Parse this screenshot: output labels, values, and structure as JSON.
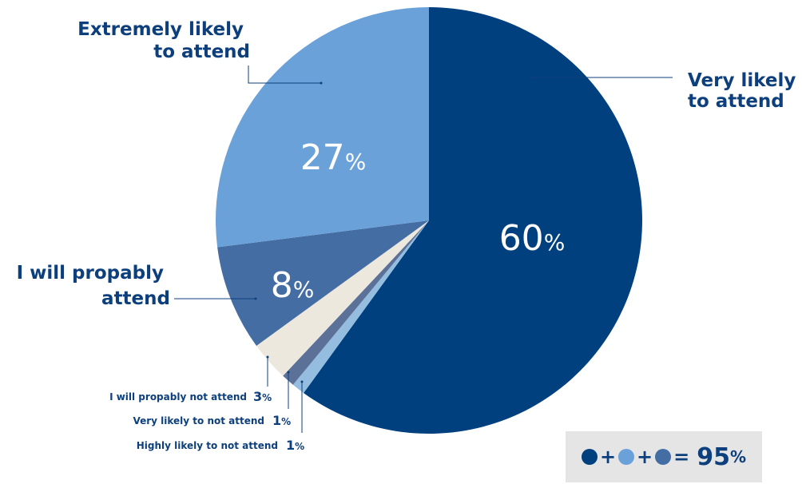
{
  "chart_data": {
    "type": "pie",
    "slices": [
      {
        "label": "Very likely to attend",
        "value": 60,
        "color": "#00407f"
      },
      {
        "label": "Highly likely to not attend",
        "value": 1,
        "color": "#94bde0"
      },
      {
        "label": "Very likely to not attend",
        "value": 1,
        "color": "#5c7197"
      },
      {
        "label": "I will propably not attend",
        "value": 3,
        "color": "#ece8de"
      },
      {
        "label": "I will propably attend",
        "value": 8,
        "color": "#446ea3"
      },
      {
        "label": "Extremely likely to attend",
        "value": 27,
        "color": "#6aa1d8"
      }
    ],
    "labels": {
      "very_likely": [
        "Very likely",
        "to attend"
      ],
      "extremely_likely": [
        "Extremely likely",
        "to attend"
      ],
      "propably_attend": [
        "I will propably",
        "attend"
      ],
      "propably_not": "I will propably not attend",
      "very_likely_not": "Very likely to not attend",
      "highly_likely_not": "Highly likely to not attend"
    },
    "value_labels": {
      "very_likely": "60",
      "extremely_likely": "27",
      "propably_attend": "8",
      "propably_not": "3",
      "very_likely_not": "1",
      "highly_likely_not": "1",
      "percent_sign": "%"
    },
    "summary": {
      "dot_colors": [
        "#00407f",
        "#6aa1d8",
        "#446ea3"
      ],
      "plus": "+",
      "equals": "=",
      "total": "95",
      "percent_sign": "%"
    }
  }
}
